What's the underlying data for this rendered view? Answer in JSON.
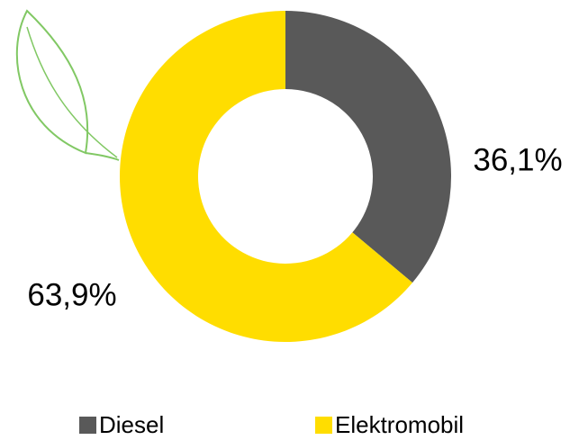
{
  "chart_data": {
    "type": "pie",
    "donut": true,
    "categories": [
      "Diesel",
      "Elektromobil"
    ],
    "values": [
      36.1,
      63.9
    ],
    "value_labels": [
      "36,1%",
      "63,9%"
    ],
    "colors": [
      "#595959",
      "#ffdd00"
    ]
  }
}
